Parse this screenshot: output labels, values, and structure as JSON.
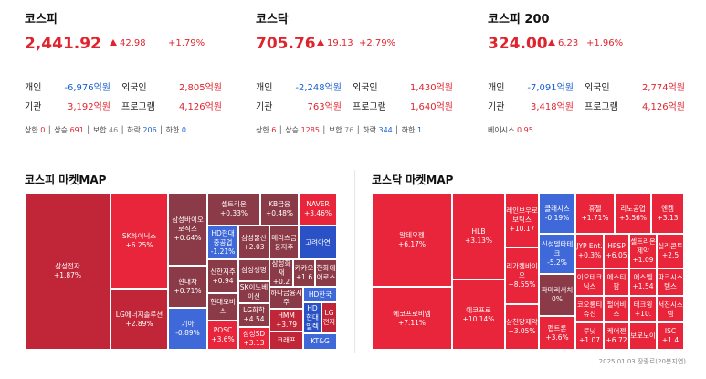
{
  "indices": [
    {
      "title": "코스피",
      "value": "2,441.92",
      "change": "42.98",
      "rate": "+1.79%",
      "rows": [
        {
          "l1": "개인",
          "v1": "-6,976억원",
          "l2": "외국인",
          "v2": "2,805억원"
        },
        {
          "l1": "기관",
          "v1": "3,192억원",
          "l2": "프로그램",
          "v2": "4,126억원"
        }
      ],
      "breadth": {
        "upper_l": "상한",
        "upper": "0",
        "rise_l": "상승",
        "rise": "691",
        "flat_l": "보합",
        "flat": "46",
        "fall_l": "하락",
        "fall": "206",
        "lower_l": "하한",
        "lower": "0"
      }
    },
    {
      "title": "코스닥",
      "value": "705.76",
      "change": "19.13",
      "rate": "+2.79%",
      "rows": [
        {
          "l1": "개인",
          "v1": "-2,248억원",
          "l2": "외국인",
          "v2": "1,430억원"
        },
        {
          "l1": "기관",
          "v1": "763억원",
          "l2": "프로그램",
          "v2": "1,640억원"
        }
      ],
      "breadth": {
        "upper_l": "상한",
        "upper": "6",
        "rise_l": "상승",
        "rise": "1285",
        "flat_l": "보합",
        "flat": "76",
        "fall_l": "하락",
        "fall": "344",
        "lower_l": "하한",
        "lower": "1"
      }
    },
    {
      "title": "코스피 200",
      "value": "324.00",
      "change": "6.23",
      "rate": "+1.96%",
      "rows": [
        {
          "l1": "개인",
          "v1": "-7,091억원",
          "l2": "외국인",
          "v2": "2,774억원"
        },
        {
          "l1": "기관",
          "v1": "3,418억원",
          "l2": "프로그램",
          "v2": "4,126억원"
        }
      ],
      "basis_l": "베이시스",
      "basis": "0.95"
    }
  ],
  "maps": {
    "kospi_title": "코스피 마켓MAP",
    "kosdaq_title": "코스닥 마켓MAP",
    "kospi": [
      {
        "n": "삼성전자",
        "c": "+1.87%"
      },
      {
        "n": "SK하이닉스",
        "c": "+6.25%"
      },
      {
        "n": "LG에너지솔루션",
        "c": "+2.89%"
      },
      {
        "n": "삼성바이오로직스",
        "c": "+0.64%"
      },
      {
        "n": "현대차",
        "c": "+0.71%"
      },
      {
        "n": "기아",
        "c": "-0.89%"
      },
      {
        "n": "셀트리온",
        "c": "+0.33%"
      },
      {
        "n": "HD현대중공업",
        "c": "-1.21%"
      },
      {
        "n": "삼성물산",
        "c": "+2.03"
      },
      {
        "n": "신한지주",
        "c": "+0.94"
      },
      {
        "n": "삼성생명",
        "c": ""
      },
      {
        "n": "현대모비스",
        "c": ""
      },
      {
        "n": "SK이노베이션",
        "c": ""
      },
      {
        "n": "LG화학",
        "c": "+4.54"
      },
      {
        "n": "POSC",
        "c": "+3.6%"
      },
      {
        "n": "삼성SD",
        "c": "+3.13"
      },
      {
        "n": "KB금융",
        "c": "+0.48%"
      },
      {
        "n": "메리츠금융지주",
        "c": ""
      },
      {
        "n": "삼성화재",
        "c": "+0.2"
      },
      {
        "n": "카카오",
        "c": "+1.6"
      },
      {
        "n": "하나금융지주",
        "c": ""
      },
      {
        "n": "HMM",
        "c": "+3.79"
      },
      {
        "n": "크래프",
        "c": ""
      },
      {
        "n": "NAVER",
        "c": "+3.46%"
      },
      {
        "n": "고려아연",
        "c": ""
      },
      {
        "n": "한화에어로스",
        "c": ""
      },
      {
        "n": "HD한국",
        "c": ""
      },
      {
        "n": "HD현대일렉",
        "c": ""
      },
      {
        "n": "LG전자",
        "c": ""
      },
      {
        "n": "KT&G",
        "c": ""
      }
    ],
    "kosdaq": [
      {
        "n": "알테오젠",
        "c": "+6.17%"
      },
      {
        "n": "에코프로비엠",
        "c": "+7.11%"
      },
      {
        "n": "HLB",
        "c": "+3.13%"
      },
      {
        "n": "에코프로",
        "c": "+10.14%"
      },
      {
        "n": "레인보우로보틱스",
        "c": "+10.17"
      },
      {
        "n": "리가켐바이오",
        "c": "+8.55%"
      },
      {
        "n": "삼천당제약",
        "c": "+3.05%"
      },
      {
        "n": "클래시스",
        "c": "-0.19%"
      },
      {
        "n": "신성델타테크",
        "c": "-5.2%"
      },
      {
        "n": "파마리서치",
        "c": "0%"
      },
      {
        "n": "펩트론",
        "c": "+3.6%"
      },
      {
        "n": "휴젤",
        "c": "+1.71%"
      },
      {
        "n": "리노공업",
        "c": "+5.56%"
      },
      {
        "n": "엔켐",
        "c": "+3.13"
      },
      {
        "n": "JYP Ent.",
        "c": "+0.3%"
      },
      {
        "n": "HPSP",
        "c": "+6.05"
      },
      {
        "n": "셀트리온제약",
        "c": "+1.09"
      },
      {
        "n": "실리콘투",
        "c": "+2.5"
      },
      {
        "n": "이오테크닉스",
        "c": ""
      },
      {
        "n": "에스티팜",
        "c": ""
      },
      {
        "n": "에스엠",
        "c": "+1.54"
      },
      {
        "n": "파크시스템스",
        "c": ""
      },
      {
        "n": "코오롱티슈진",
        "c": ""
      },
      {
        "n": "펄어비스",
        "c": ""
      },
      {
        "n": "테크윙",
        "c": "+10."
      },
      {
        "n": "서진시스템",
        "c": ""
      },
      {
        "n": "루닛",
        "c": "+1.07"
      },
      {
        "n": "케어젠",
        "c": "+6.72"
      },
      {
        "n": "보로노이",
        "c": ""
      },
      {
        "n": "ISC",
        "c": "+1.4"
      }
    ]
  },
  "footer": "2025.01.03 장종료(20분지연)"
}
